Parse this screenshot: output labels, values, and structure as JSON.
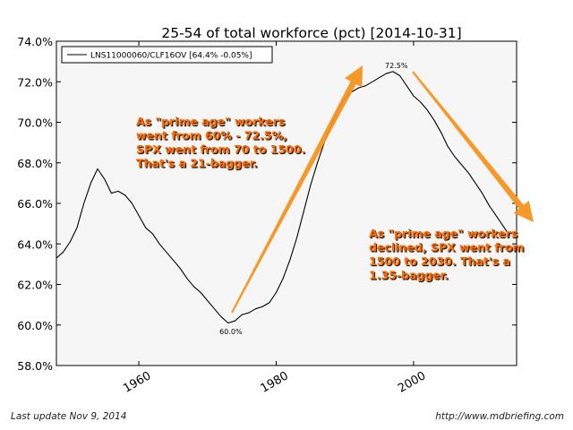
{
  "chart_data": {
    "type": "line",
    "title": "25-54 of total workforce (pct) [2014-10-31]",
    "xlabel": "",
    "ylabel": "",
    "xlim": [
      1948,
      2015
    ],
    "ylim": [
      58.0,
      74.0
    ],
    "xticks": [
      1960,
      1980,
      2000
    ],
    "yticks": [
      58.0,
      60.0,
      62.0,
      64.0,
      66.0,
      68.0,
      70.0,
      72.0,
      74.0
    ],
    "ytick_labels": [
      "58.0%",
      "60.0%",
      "62.0%",
      "64.0%",
      "66.0%",
      "68.0%",
      "70.0%",
      "72.0%",
      "74.0%"
    ],
    "grid": false,
    "legend_position": "top-left",
    "series": [
      {
        "name": "LNS11000060/CLF16OV [64.4% -0.05%]",
        "color": "#000000",
        "x": [
          1948,
          1949,
          1950,
          1951,
          1952,
          1953,
          1954,
          1955,
          1956,
          1957,
          1958,
          1959,
          1960,
          1961,
          1962,
          1963,
          1964,
          1965,
          1966,
          1967,
          1968,
          1969,
          1970,
          1971,
          1972,
          1973,
          1974,
          1975,
          1976,
          1977,
          1978,
          1979,
          1980,
          1981,
          1982,
          1983,
          1984,
          1985,
          1986,
          1987,
          1988,
          1989,
          1990,
          1991,
          1992,
          1993,
          1994,
          1995,
          1996,
          1997,
          1998,
          1999,
          2000,
          2001,
          2002,
          2003,
          2004,
          2005,
          2006,
          2007,
          2008,
          2009,
          2010,
          2011,
          2012,
          2013,
          2014
        ],
        "values": [
          63.3,
          63.6,
          64.1,
          64.8,
          66.0,
          67.0,
          67.7,
          67.2,
          66.5,
          66.6,
          66.4,
          66.0,
          65.4,
          64.8,
          64.5,
          64.0,
          63.6,
          63.2,
          62.8,
          62.3,
          61.9,
          61.6,
          61.2,
          60.8,
          60.4,
          60.1,
          60.2,
          60.5,
          60.6,
          60.8,
          60.9,
          61.1,
          61.6,
          62.3,
          63.2,
          64.3,
          65.6,
          66.9,
          68.0,
          69.0,
          69.9,
          70.6,
          71.2,
          71.5,
          71.7,
          71.8,
          72.0,
          72.2,
          72.4,
          72.5,
          72.3,
          71.8,
          71.3,
          71.0,
          70.6,
          70.1,
          69.5,
          68.8,
          68.3,
          67.9,
          67.5,
          67.0,
          66.5,
          65.9,
          65.4,
          64.9,
          64.4
        ]
      }
    ],
    "annotations": [
      {
        "text": "60.0%",
        "x": 1973.4,
        "y": 60.0
      },
      {
        "text": "72.5%",
        "x": 1997.5,
        "y": 72.5
      }
    ],
    "arrow_color": "#f7941d",
    "callout_color": "#ff6a00",
    "callouts": [
      {
        "lines": [
          "As \"prime age\" workers",
          "went from 60% - 72.5%,",
          "SPX went from 70 to 1500.",
          "That's a 21-bagger."
        ]
      },
      {
        "lines": [
          "As \"prime age\" workers",
          "declined, SPX went from",
          "1500 to 2030.  That's a",
          "1.35-bagger."
        ]
      }
    ]
  },
  "footer": {
    "left": "Last update Nov  9, 2014",
    "right": "http://www.mdbriefing.com"
  }
}
